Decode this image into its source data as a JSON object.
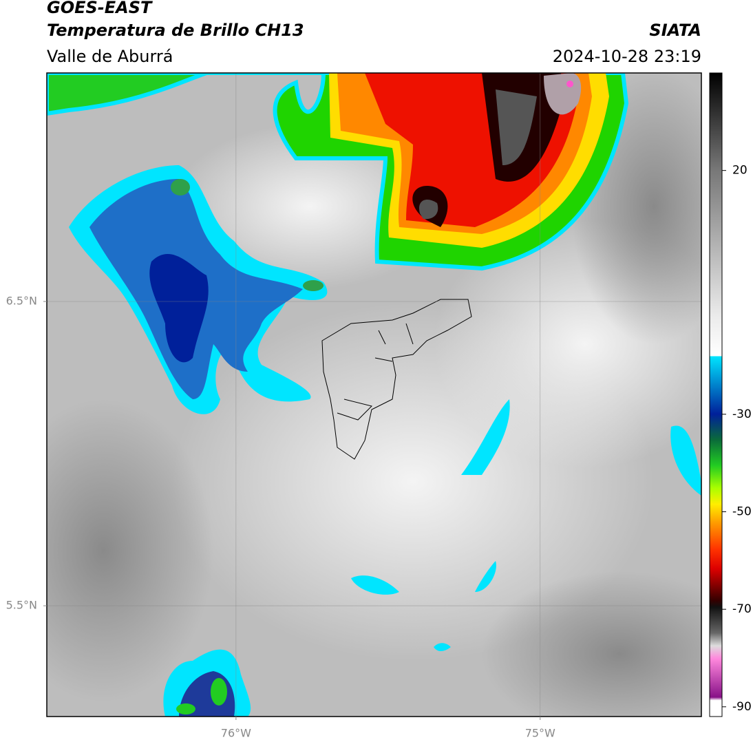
{
  "header": {
    "satellite": "GOES-EAST",
    "product": "Temperatura de Brillo CH13",
    "region": "Valle de Aburrá",
    "source": "SIATA",
    "datetime": "2024-10-28 23:19"
  },
  "map": {
    "xlim": [
      -76.622,
      -74.47
    ],
    "ylim": [
      5.136,
      7.251
    ],
    "xticks": [
      {
        "value": -76,
        "label": "76°W"
      },
      {
        "value": -75,
        "label": "75°W"
      }
    ],
    "yticks": [
      {
        "value": 6.5,
        "label": "6.5°N"
      },
      {
        "value": 5.5,
        "label": "5.5°N"
      }
    ],
    "grid": true
  },
  "colorbar": {
    "lim": [
      -92,
      40
    ],
    "ticks": [
      20,
      -30,
      -50,
      -70,
      -90
    ]
  }
}
